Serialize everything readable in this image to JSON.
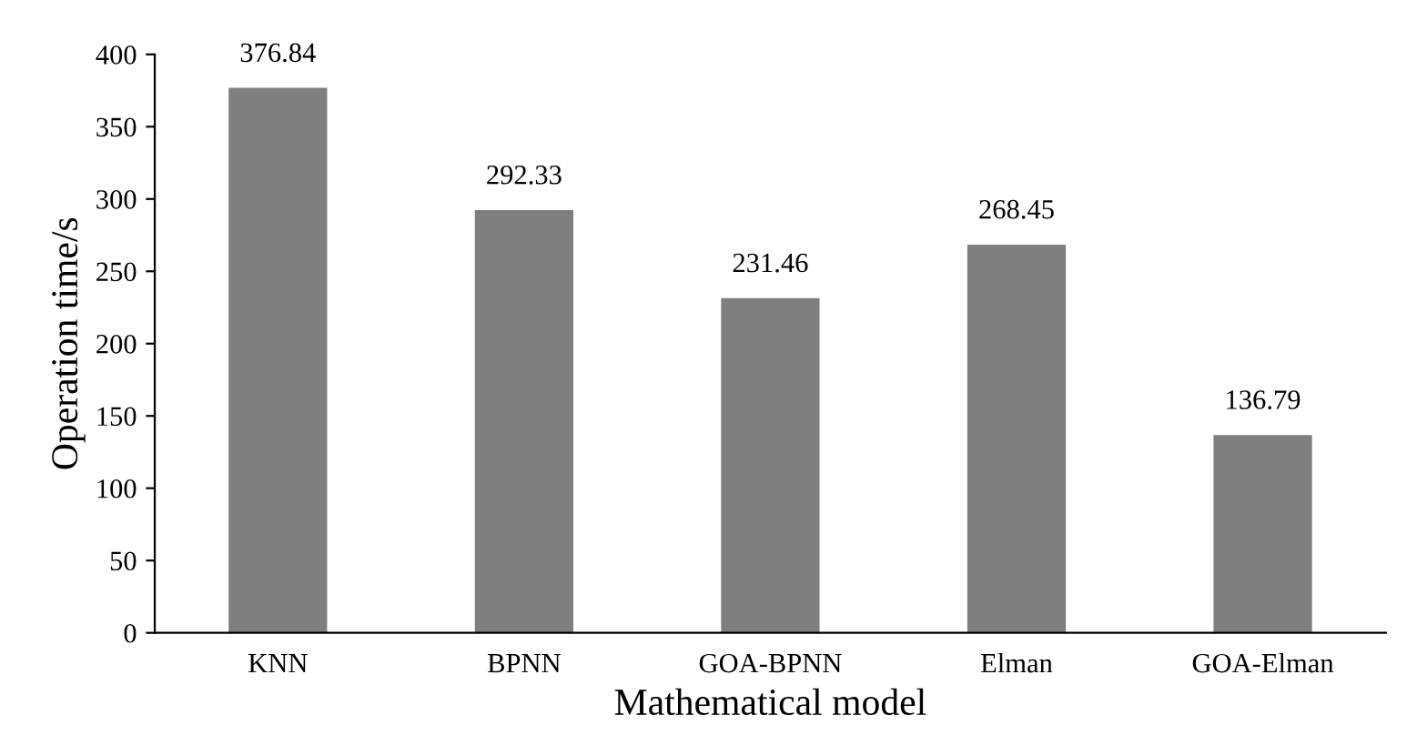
{
  "chart_data": {
    "type": "bar",
    "xlabel": "Mathematical model",
    "ylabel": "Operation time/s",
    "categories": [
      "KNN",
      "BPNN",
      "GOA-BPNN",
      "Elman",
      "GOA-Elman"
    ],
    "values": [
      376.84,
      292.33,
      231.46,
      268.45,
      136.79
    ],
    "color": "#7f7f7f",
    "ylim": [
      0,
      400
    ],
    "yticks": [
      0,
      50,
      100,
      150,
      200,
      250,
      300,
      350,
      400
    ],
    "grid": false,
    "data_labels": true
  }
}
